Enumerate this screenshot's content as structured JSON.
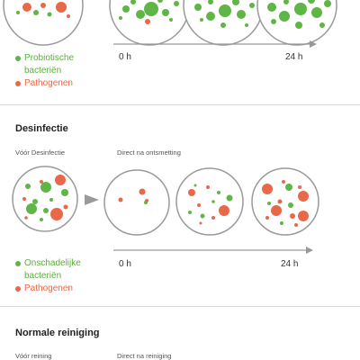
{
  "colors": {
    "probiotic": "#5fb546",
    "pathogen": "#e9684a",
    "dish_stroke": "#9a9a9a",
    "arrow": "#999999"
  },
  "top": {
    "legend": {
      "probiotic": [
        "Probiotische",
        "bacteriën"
      ],
      "pathogen": "Pathogenen"
    },
    "axis": {
      "start": "0 h",
      "end": "24 h"
    }
  },
  "desinfectie": {
    "title": "Desinfectie",
    "label_before": "Vóór Desinfectie",
    "label_after": "Direct na ontsmetting",
    "legend": {
      "harmless": [
        "Onschadelijke",
        "bacteriën"
      ],
      "pathogen": "Pathogenen"
    },
    "axis": {
      "start": "0 h",
      "end": "24 h"
    }
  },
  "normale": {
    "title": "Normale reiniging",
    "label_before": "Vóór reining",
    "label_after": "Direct na reiniging"
  }
}
